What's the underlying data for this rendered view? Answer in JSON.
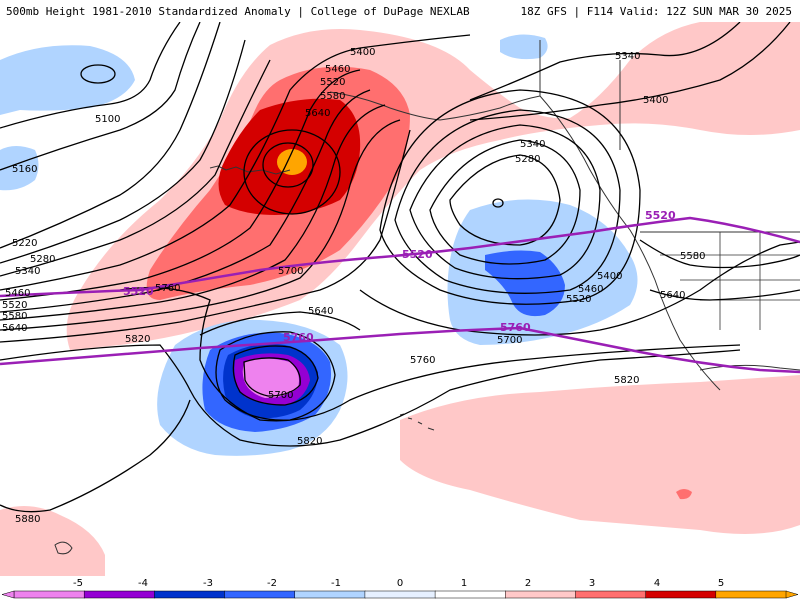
{
  "header": {
    "title": "500mb Height 1981-2010 Standardized Anomaly | College of DuPage NEXLAB",
    "run_info": "18Z GFS | F114 Valid: 12Z SUN MAR 30 2025"
  },
  "contour_labels": [
    {
      "id": "c5400-north",
      "text": "5400"
    },
    {
      "id": "c5460-a",
      "text": "5460"
    },
    {
      "id": "c5520-a",
      "text": "5520"
    },
    {
      "id": "c5580-a",
      "text": "5580"
    },
    {
      "id": "c5640-a",
      "text": "5640"
    },
    {
      "id": "c5100",
      "text": "5100"
    },
    {
      "id": "c5160",
      "text": "5160"
    },
    {
      "id": "c5220",
      "text": "5220"
    },
    {
      "id": "c5280-w",
      "text": "5280"
    },
    {
      "id": "c5340-w",
      "text": "5340"
    },
    {
      "id": "c5460-w",
      "text": "5460"
    },
    {
      "id": "c5520-w",
      "text": "5520"
    },
    {
      "id": "c5580-w",
      "text": "5580"
    },
    {
      "id": "c5640-w",
      "text": "5640"
    },
    {
      "id": "c5760-a",
      "text": "5760"
    },
    {
      "id": "c5700-a",
      "text": "5700"
    },
    {
      "id": "c5820-w",
      "text": "5820"
    },
    {
      "id": "c5640-b",
      "text": "5640"
    },
    {
      "id": "c5700-low",
      "text": "5700"
    },
    {
      "id": "c5820-s",
      "text": "5820"
    },
    {
      "id": "c5880",
      "text": "5880"
    },
    {
      "id": "c5340-trough",
      "text": "5340"
    },
    {
      "id": "c5280-trough",
      "text": "5280"
    },
    {
      "id": "c5400-trough",
      "text": "5400"
    },
    {
      "id": "c5460-trough",
      "text": "5460"
    },
    {
      "id": "c5520-trough",
      "text": "5520"
    },
    {
      "id": "c5700-trough",
      "text": "5700"
    },
    {
      "id": "c5760-e",
      "text": "5760"
    },
    {
      "id": "c5820-e",
      "text": "5820"
    },
    {
      "id": "c5340-ne",
      "text": "5340"
    },
    {
      "id": "c5400-ne",
      "text": "5400"
    },
    {
      "id": "c5580-e",
      "text": "5580"
    },
    {
      "id": "c5640-e",
      "text": "5640"
    }
  ],
  "climo_labels": [
    {
      "id": "p5520-w",
      "text": "5520"
    },
    {
      "id": "p5520-c",
      "text": "5520"
    },
    {
      "id": "p5520-e",
      "text": "5520"
    },
    {
      "id": "p5760-c",
      "text": "5760"
    },
    {
      "id": "p5760-e",
      "text": "5760"
    }
  ],
  "colorbar": {
    "ticks": [
      "-5",
      "-4",
      "-3",
      "-2",
      "-1",
      "0",
      "1",
      "2",
      "3",
      "4",
      "5"
    ],
    "colors": [
      "#ee82ee",
      "#9400d3",
      "#0033cc",
      "#3366ff",
      "#b0d4ff",
      "#e6f0ff",
      "#ffffff",
      "#ffc8c8",
      "#ff6f6f",
      "#d40000",
      "#ffa500"
    ]
  }
}
